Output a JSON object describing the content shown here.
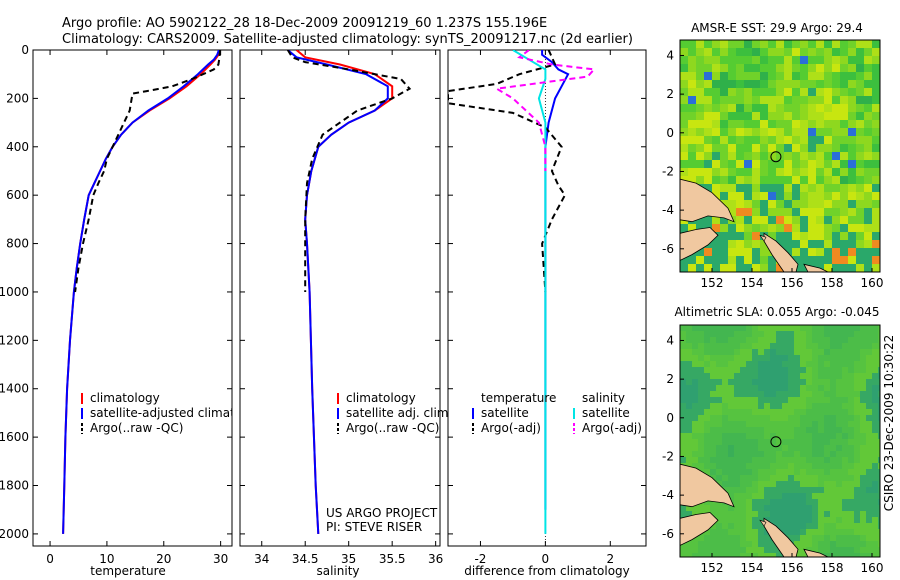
{
  "title": {
    "line1": "Argo profile: AO 5902122_28 18-Dec-2009 20091219_60 1.237S 155.196E",
    "line2": "Climatology: CARS2009. Satellite-adjusted climatology: synTS_20091217.nc (2d earlier)"
  },
  "colors": {
    "climatology": "#ff0000",
    "satellite": "#0000ff",
    "argo": "#000000",
    "sal_satellite": "#00e5e5",
    "sal_argo": "#ff00ff",
    "land": "#f0c8a0"
  },
  "credit": "CSIRO 23-Dec-2009 10:30:22",
  "chart_data": [
    {
      "type": "line",
      "id": "temperature",
      "xlabel": "temperature",
      "xlim": [
        -3,
        32
      ],
      "ylim": [
        2050,
        0
      ],
      "xticks": [
        0,
        10,
        20,
        30
      ],
      "yticks": [
        0,
        200,
        400,
        600,
        800,
        1000,
        1200,
        1400,
        1600,
        1800,
        2000
      ],
      "legend": [
        "climatology",
        "satellite-adjusted climatology",
        "Argo(..raw -QC)"
      ],
      "series": [
        {
          "name": "climatology",
          "color": "#ff0000",
          "dash": "",
          "x": [
            29.8,
            29.6,
            29.0,
            28.2,
            26.5,
            24.0,
            21.0,
            17.5,
            14.5,
            12.5,
            11.0,
            9.8,
            8.8,
            7.8,
            6.8,
            6.0,
            5.3,
            4.7,
            4.2,
            3.5,
            3.0,
            2.7,
            2.5,
            2.3
          ],
          "y": [
            0,
            20,
            40,
            60,
            100,
            150,
            200,
            250,
            300,
            350,
            400,
            450,
            500,
            550,
            600,
            700,
            800,
            900,
            1000,
            1200,
            1400,
            1600,
            1800,
            2000
          ]
        },
        {
          "name": "satellite-adjusted climatology",
          "color": "#0000ff",
          "dash": "",
          "x": [
            29.7,
            29.4,
            28.8,
            27.8,
            26.0,
            23.5,
            20.7,
            17.3,
            14.5,
            12.5,
            11.0,
            9.8,
            8.8,
            7.8,
            6.8,
            6.0,
            5.3,
            4.7,
            4.2,
            3.5,
            3.0,
            2.7,
            2.5,
            2.3
          ],
          "y": [
            0,
            20,
            40,
            60,
            100,
            150,
            200,
            250,
            300,
            350,
            400,
            450,
            500,
            550,
            600,
            700,
            800,
            900,
            1000,
            1200,
            1400,
            1600,
            1800,
            2000
          ]
        },
        {
          "name": "Argo(..raw -QC)",
          "color": "#000000",
          "dash": "6,4",
          "x": [
            29.9,
            29.8,
            29.6,
            28.8,
            25.0,
            21.5,
            17.0,
            14.5,
            14.0,
            13.0,
            11.0,
            10.0,
            9.5,
            8.5,
            7.6,
            6.8,
            5.8,
            5.0,
            4.4
          ],
          "y": [
            0,
            30,
            60,
            80,
            120,
            150,
            170,
            180,
            250,
            300,
            400,
            450,
            500,
            550,
            600,
            700,
            800,
            900,
            1000
          ]
        }
      ]
    },
    {
      "type": "line",
      "id": "salinity",
      "xlabel": "salinity",
      "xlim": [
        33.75,
        36.05
      ],
      "ylim": [
        2050,
        0
      ],
      "xticks": [
        34,
        34.5,
        35,
        35.5,
        36
      ],
      "xticklabels": [
        "34",
        "34.5",
        "35",
        "35.5",
        "36"
      ],
      "legend": [
        "climatology",
        "satellite adj. clim.",
        "Argo(..raw -QC)"
      ],
      "annotation": [
        "US ARGO PROJECT",
        "PI: STEVE RISER"
      ],
      "series": [
        {
          "name": "climatology",
          "color": "#ff0000",
          "dash": "",
          "x": [
            34.4,
            34.5,
            34.9,
            35.3,
            35.5,
            35.5,
            35.3,
            35.0,
            34.8,
            34.65,
            34.57,
            34.52,
            34.5,
            34.52,
            34.55,
            34.58,
            34.62,
            34.65
          ],
          "y": [
            0,
            30,
            60,
            100,
            150,
            200,
            250,
            300,
            350,
            400,
            500,
            600,
            700,
            800,
            1000,
            1400,
            1800,
            2000
          ]
        },
        {
          "name": "satellite adj. clim.",
          "color": "#0000ff",
          "dash": "",
          "x": [
            34.3,
            34.4,
            34.75,
            35.2,
            35.45,
            35.45,
            35.3,
            35.0,
            34.8,
            34.65,
            34.57,
            34.52,
            34.5,
            34.52,
            34.55,
            34.58,
            34.62,
            34.65
          ],
          "y": [
            0,
            30,
            60,
            100,
            150,
            200,
            250,
            300,
            350,
            400,
            500,
            600,
            700,
            800,
            1000,
            1400,
            1800,
            2000
          ]
        },
        {
          "name": "Argo(..raw -QC)",
          "color": "#000000",
          "dash": "6,4",
          "x": [
            34.3,
            34.35,
            34.5,
            35.0,
            35.6,
            35.7,
            35.5,
            35.1,
            34.9,
            34.7,
            34.58,
            34.52,
            34.5,
            34.5
          ],
          "y": [
            0,
            30,
            50,
            80,
            120,
            160,
            200,
            250,
            300,
            350,
            450,
            550,
            700,
            1000
          ]
        }
      ]
    },
    {
      "type": "line",
      "id": "difference",
      "xlabel": "difference from climatology",
      "xlim": [
        -3,
        3.1
      ],
      "ylim": [
        2050,
        0
      ],
      "xticks": [
        -2,
        0,
        2
      ],
      "legend_temperature_header": "temperature",
      "legend_salinity_header": "salinity",
      "legend": [
        "satellite",
        "Argo(-adj)",
        "satellite",
        "Argo(-adj)"
      ],
      "series": [
        {
          "name": "temperature satellite",
          "color": "#0000ff",
          "dash": "",
          "x": [
            -0.1,
            -0.1,
            0.2,
            0.4,
            0.7,
            0.5,
            0.3,
            0.1,
            0.0,
            0.0,
            0.0,
            0.0,
            0.0
          ],
          "y": [
            0,
            20,
            50,
            80,
            100,
            150,
            200,
            300,
            400,
            600,
            1000,
            1500,
            1900
          ]
        },
        {
          "name": "temperature Argo(-adj)",
          "color": "#000000",
          "dash": "6,4",
          "x": [
            0.1,
            0.2,
            0.3,
            -0.8,
            -1.5,
            -3.0,
            -3.0,
            -1.0,
            0.0,
            0.5,
            0.2,
            0.4,
            0.6,
            0.2,
            -0.1,
            0.0
          ],
          "y": [
            0,
            30,
            60,
            100,
            140,
            170,
            220,
            260,
            320,
            400,
            500,
            560,
            600,
            700,
            800,
            1000
          ]
        },
        {
          "name": "salinity satellite",
          "color": "#00e5e5",
          "dash": "",
          "x": [
            -1.0,
            -0.5,
            0.0,
            0.0,
            -0.2,
            0.0,
            0.0,
            0.0
          ],
          "y": [
            0,
            40,
            80,
            120,
            200,
            300,
            1000,
            2000
          ]
        },
        {
          "name": "salinity Argo(-adj)",
          "color": "#ff00ff",
          "dash": "6,4",
          "x": [
            -0.5,
            -0.8,
            0.2,
            1.5,
            1.3,
            -1.5,
            -1.0,
            -0.2,
            0.0,
            0.0
          ],
          "y": [
            0,
            30,
            60,
            80,
            110,
            160,
            200,
            300,
            400,
            500
          ]
        }
      ]
    },
    {
      "type": "heatmap",
      "id": "amsr-sst",
      "title": "AMSR-E SST: 29.9 Argo: 29.4",
      "xlim": [
        150.4,
        160.4
      ],
      "ylim": [
        -7.2,
        4.8
      ],
      "xticks": [
        152,
        154,
        156,
        158,
        160
      ],
      "yticks": [
        -6,
        -4,
        -2,
        0,
        2,
        4
      ],
      "marker": {
        "lon": 155.196,
        "lat": -1.237
      }
    },
    {
      "type": "heatmap",
      "id": "altimetric-sla",
      "title": "Altimetric SLA: 0.055 Argo: -0.045",
      "xlim": [
        150.4,
        160.4
      ],
      "ylim": [
        -7.2,
        4.8
      ],
      "xticks": [
        152,
        154,
        156,
        158,
        160
      ],
      "yticks": [
        -6,
        -4,
        -2,
        0,
        2,
        4
      ],
      "marker": {
        "lon": 155.196,
        "lat": -1.237
      }
    }
  ]
}
